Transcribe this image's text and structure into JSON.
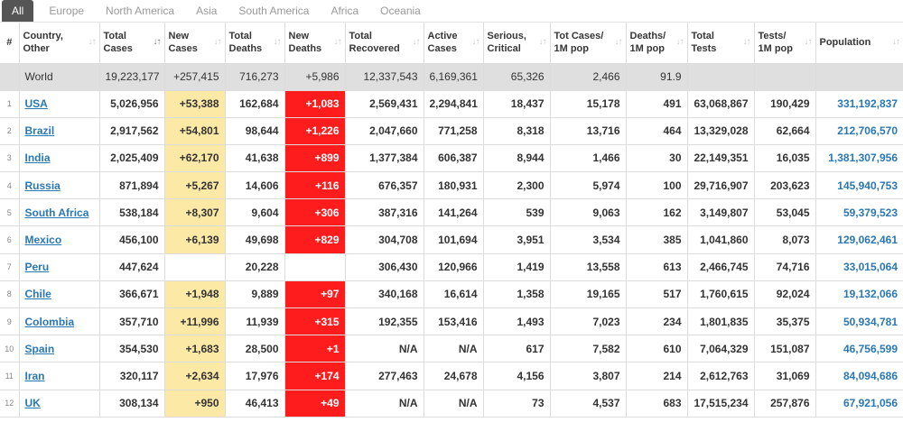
{
  "tabs": [
    "All",
    "Europe",
    "North America",
    "Asia",
    "South America",
    "Africa",
    "Oceania"
  ],
  "active_tab": 0,
  "headers": [
    {
      "l1": "#",
      "l2": "",
      "key": "idx"
    },
    {
      "l1": "Country,",
      "l2": "Other",
      "key": "country"
    },
    {
      "l1": "Total",
      "l2": "Cases",
      "key": "total_cases"
    },
    {
      "l1": "New",
      "l2": "Cases",
      "key": "new_cases"
    },
    {
      "l1": "Total",
      "l2": "Deaths",
      "key": "total_deaths"
    },
    {
      "l1": "New",
      "l2": "Deaths",
      "key": "new_deaths"
    },
    {
      "l1": "Total",
      "l2": "Recovered",
      "key": "total_recovered"
    },
    {
      "l1": "Active",
      "l2": "Cases",
      "key": "active"
    },
    {
      "l1": "Serious,",
      "l2": "Critical",
      "key": "serious"
    },
    {
      "l1": "Tot Cases/",
      "l2": "1M pop",
      "key": "cases_per_m"
    },
    {
      "l1": "Deaths/",
      "l2": "1M pop",
      "key": "deaths_per_m"
    },
    {
      "l1": "Total",
      "l2": "Tests",
      "key": "tests"
    },
    {
      "l1": "Tests/",
      "l2": "1M pop",
      "key": "tests_per_m"
    },
    {
      "l1": "Population",
      "l2": "",
      "key": "population"
    }
  ],
  "sort_icon": "sort-arrows-icon",
  "sorted_column": "total_cases",
  "world": {
    "country": "World",
    "total_cases": "19,223,177",
    "new_cases": "+257,415",
    "total_deaths": "716,273",
    "new_deaths": "+5,986",
    "total_recovered": "12,337,543",
    "active": "6,169,361",
    "serious": "65,326",
    "cases_per_m": "2,466",
    "deaths_per_m": "91.9",
    "tests": "",
    "tests_per_m": "",
    "population": ""
  },
  "rows": [
    {
      "idx": "1",
      "country": "USA",
      "total_cases": "5,026,956",
      "new_cases": "+53,388",
      "total_deaths": "162,684",
      "new_deaths": "+1,083",
      "total_recovered": "2,569,431",
      "active": "2,294,841",
      "serious": "18,437",
      "cases_per_m": "15,178",
      "deaths_per_m": "491",
      "tests": "63,068,867",
      "tests_per_m": "190,429",
      "population": "331,192,837"
    },
    {
      "idx": "2",
      "country": "Brazil",
      "total_cases": "2,917,562",
      "new_cases": "+54,801",
      "total_deaths": "98,644",
      "new_deaths": "+1,226",
      "total_recovered": "2,047,660",
      "active": "771,258",
      "serious": "8,318",
      "cases_per_m": "13,716",
      "deaths_per_m": "464",
      "tests": "13,329,028",
      "tests_per_m": "62,664",
      "population": "212,706,570"
    },
    {
      "idx": "3",
      "country": "India",
      "total_cases": "2,025,409",
      "new_cases": "+62,170",
      "total_deaths": "41,638",
      "new_deaths": "+899",
      "total_recovered": "1,377,384",
      "active": "606,387",
      "serious": "8,944",
      "cases_per_m": "1,466",
      "deaths_per_m": "30",
      "tests": "22,149,351",
      "tests_per_m": "16,035",
      "population": "1,381,307,956"
    },
    {
      "idx": "4",
      "country": "Russia",
      "total_cases": "871,894",
      "new_cases": "+5,267",
      "total_deaths": "14,606",
      "new_deaths": "+116",
      "total_recovered": "676,357",
      "active": "180,931",
      "serious": "2,300",
      "cases_per_m": "5,974",
      "deaths_per_m": "100",
      "tests": "29,716,907",
      "tests_per_m": "203,623",
      "population": "145,940,753"
    },
    {
      "idx": "5",
      "country": "South Africa",
      "total_cases": "538,184",
      "new_cases": "+8,307",
      "total_deaths": "9,604",
      "new_deaths": "+306",
      "total_recovered": "387,316",
      "active": "141,264",
      "serious": "539",
      "cases_per_m": "9,063",
      "deaths_per_m": "162",
      "tests": "3,149,807",
      "tests_per_m": "53,045",
      "population": "59,379,523"
    },
    {
      "idx": "6",
      "country": "Mexico",
      "total_cases": "456,100",
      "new_cases": "+6,139",
      "total_deaths": "49,698",
      "new_deaths": "+829",
      "total_recovered": "304,708",
      "active": "101,694",
      "serious": "3,951",
      "cases_per_m": "3,534",
      "deaths_per_m": "385",
      "tests": "1,041,860",
      "tests_per_m": "8,073",
      "population": "129,062,461"
    },
    {
      "idx": "7",
      "country": "Peru",
      "total_cases": "447,624",
      "new_cases": "",
      "total_deaths": "20,228",
      "new_deaths": "",
      "total_recovered": "306,430",
      "active": "120,966",
      "serious": "1,419",
      "cases_per_m": "13,558",
      "deaths_per_m": "613",
      "tests": "2,466,745",
      "tests_per_m": "74,716",
      "population": "33,015,064"
    },
    {
      "idx": "8",
      "country": "Chile",
      "total_cases": "366,671",
      "new_cases": "+1,948",
      "total_deaths": "9,889",
      "new_deaths": "+97",
      "total_recovered": "340,168",
      "active": "16,614",
      "serious": "1,358",
      "cases_per_m": "19,165",
      "deaths_per_m": "517",
      "tests": "1,760,615",
      "tests_per_m": "92,024",
      "population": "19,132,066"
    },
    {
      "idx": "9",
      "country": "Colombia",
      "total_cases": "357,710",
      "new_cases": "+11,996",
      "total_deaths": "11,939",
      "new_deaths": "+315",
      "total_recovered": "192,355",
      "active": "153,416",
      "serious": "1,493",
      "cases_per_m": "7,023",
      "deaths_per_m": "234",
      "tests": "1,801,835",
      "tests_per_m": "35,375",
      "population": "50,934,781"
    },
    {
      "idx": "10",
      "country": "Spain",
      "total_cases": "354,530",
      "new_cases": "+1,683",
      "total_deaths": "28,500",
      "new_deaths": "+1",
      "total_recovered": "N/A",
      "active": "N/A",
      "serious": "617",
      "cases_per_m": "7,582",
      "deaths_per_m": "610",
      "tests": "7,064,329",
      "tests_per_m": "151,087",
      "population": "46,756,599"
    },
    {
      "idx": "11",
      "country": "Iran",
      "total_cases": "320,117",
      "new_cases": "+2,634",
      "total_deaths": "17,976",
      "new_deaths": "+174",
      "total_recovered": "277,463",
      "active": "24,678",
      "serious": "4,156",
      "cases_per_m": "3,807",
      "deaths_per_m": "214",
      "tests": "2,612,763",
      "tests_per_m": "31,069",
      "population": "84,094,686"
    },
    {
      "idx": "12",
      "country": "UK",
      "total_cases": "308,134",
      "new_cases": "+950",
      "total_deaths": "46,413",
      "new_deaths": "+49",
      "total_recovered": "N/A",
      "active": "N/A",
      "serious": "73",
      "cases_per_m": "4,537",
      "deaths_per_m": "683",
      "tests": "17,515,234",
      "tests_per_m": "257,876",
      "population": "67,921,056"
    }
  ]
}
